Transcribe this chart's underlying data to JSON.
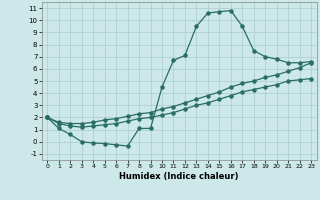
{
  "title": "",
  "xlabel": "Humidex (Indice chaleur)",
  "bg_color": "#cce8e8",
  "grid_color": "#b0d0d0",
  "line_color": "#2a6e62",
  "xlim": [
    -0.5,
    23.5
  ],
  "ylim": [
    -1.5,
    11.5
  ],
  "xticks": [
    0,
    1,
    2,
    3,
    4,
    5,
    6,
    7,
    8,
    9,
    10,
    11,
    12,
    13,
    14,
    15,
    16,
    17,
    18,
    19,
    20,
    21,
    22,
    23
  ],
  "yticks": [
    -1,
    0,
    1,
    2,
    3,
    4,
    5,
    6,
    7,
    8,
    9,
    10,
    11
  ],
  "curve1_x": [
    0,
    1,
    2,
    3,
    4,
    5,
    6,
    7,
    8,
    9,
    10,
    11,
    12,
    13,
    14,
    15,
    16,
    17,
    18,
    19,
    20,
    21,
    22,
    23
  ],
  "curve1_y": [
    2.0,
    1.1,
    0.6,
    0.0,
    -0.1,
    -0.15,
    -0.25,
    -0.35,
    1.1,
    1.1,
    4.5,
    6.7,
    7.1,
    9.5,
    10.6,
    10.7,
    10.8,
    9.5,
    7.5,
    7.0,
    6.8,
    6.5,
    6.5,
    6.6
  ],
  "curve2_x": [
    0,
    1,
    2,
    3,
    4,
    5,
    6,
    7,
    8,
    9,
    10,
    11,
    12,
    13,
    14,
    15,
    16,
    17,
    18,
    19,
    20,
    21,
    22,
    23
  ],
  "curve2_y": [
    2.0,
    1.6,
    1.5,
    1.5,
    1.6,
    1.8,
    1.9,
    2.1,
    2.3,
    2.4,
    2.7,
    2.9,
    3.2,
    3.5,
    3.8,
    4.1,
    4.5,
    4.8,
    5.0,
    5.3,
    5.5,
    5.8,
    6.1,
    6.5
  ],
  "curve3_x": [
    0,
    1,
    2,
    3,
    4,
    5,
    6,
    7,
    8,
    9,
    10,
    11,
    12,
    13,
    14,
    15,
    16,
    17,
    18,
    19,
    20,
    21,
    22,
    23
  ],
  "curve3_y": [
    2.0,
    1.5,
    1.3,
    1.2,
    1.3,
    1.4,
    1.5,
    1.7,
    1.9,
    2.0,
    2.2,
    2.4,
    2.7,
    3.0,
    3.2,
    3.5,
    3.8,
    4.1,
    4.3,
    4.5,
    4.7,
    5.0,
    5.1,
    5.2
  ]
}
